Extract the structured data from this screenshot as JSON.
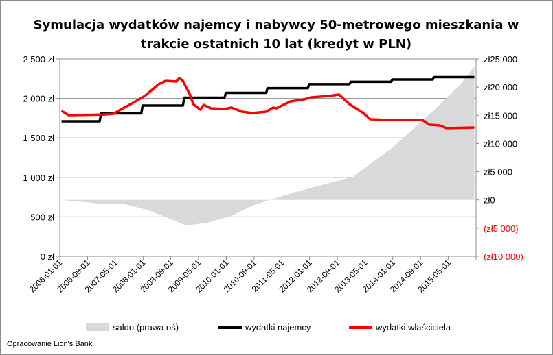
{
  "chart_data": {
    "type": "line",
    "title_line1": "Symulacja wydatków najemcy i nabywcy 50-metrowego mieszkania w",
    "title_line2": "trakcie ostatnich 10 lat (kredyt w PLN)",
    "x_start": "2006-01",
    "x_months": 120,
    "x_tick_labels": [
      "2006-01-01",
      "2006-09-01",
      "2007-05-01",
      "2008-01-01",
      "2008-09-01",
      "2009-05-01",
      "2010-01-01",
      "2010-09-01",
      "2011-05-01",
      "2012-01-01",
      "2012-09-01",
      "2013-05-01",
      "2014-01-01",
      "2014-09-01",
      "2015-05-01"
    ],
    "y_left": {
      "range": [
        0,
        2500
      ],
      "ticks": [
        0,
        500,
        1000,
        1500,
        2000,
        2500
      ],
      "tick_labels": [
        "0 zł",
        "500 zł",
        "1 000 zł",
        "1 500 zł",
        "2 000 zł",
        "2 500 zł"
      ]
    },
    "y_right": {
      "range": [
        -10000,
        25000
      ],
      "ticks": [
        -10000,
        -5000,
        0,
        5000,
        10000,
        15000,
        20000,
        25000
      ],
      "tick_labels": [
        "(zł10 000)",
        "(zł5 000)",
        "zł0",
        "zł5 000",
        "zł10 000",
        "zł15 000",
        "zł20 000",
        "zł25 000"
      ],
      "negative_color": "#ff0000"
    },
    "grid": true,
    "legend_position": "bottom",
    "series": [
      {
        "name": "saldo (prawa oś)",
        "axis": "right",
        "kind": "area",
        "color": "#d9d9d9",
        "points_month_value": [
          [
            0,
            0
          ],
          [
            11,
            -650
          ],
          [
            18,
            -700
          ],
          [
            25,
            -1820
          ],
          [
            30,
            -3040
          ],
          [
            36,
            -4540
          ],
          [
            42,
            -4050
          ],
          [
            49,
            -2830
          ],
          [
            55,
            -1010
          ],
          [
            61,
            200
          ],
          [
            69,
            1660
          ],
          [
            75,
            2640
          ],
          [
            84,
            4100
          ],
          [
            88,
            5920
          ],
          [
            95,
            9080
          ],
          [
            101,
            12360
          ],
          [
            108,
            16250
          ],
          [
            115,
            20500
          ],
          [
            119,
            23660
          ]
        ]
      },
      {
        "name": "wydatki najemcy",
        "axis": "left",
        "kind": "step",
        "color": "#000000",
        "points_month_value": [
          [
            0,
            1710
          ],
          [
            12,
            1810
          ],
          [
            24,
            1910
          ],
          [
            36,
            2010
          ],
          [
            48,
            2070
          ],
          [
            60,
            2130
          ],
          [
            72,
            2180
          ],
          [
            84,
            2210
          ],
          [
            96,
            2240
          ],
          [
            108,
            2270
          ],
          [
            119,
            2270
          ]
        ]
      },
      {
        "name": "wydatki właściciela",
        "axis": "left",
        "kind": "line",
        "color": "#ff0000",
        "points_month_value": [
          [
            0,
            1843
          ],
          [
            2,
            1788
          ],
          [
            5,
            1790
          ],
          [
            12,
            1795
          ],
          [
            15,
            1805
          ],
          [
            17,
            1858
          ],
          [
            21,
            1953
          ],
          [
            24,
            2031
          ],
          [
            28,
            2179
          ],
          [
            30,
            2222
          ],
          [
            33,
            2214
          ],
          [
            34,
            2257
          ],
          [
            35,
            2222
          ],
          [
            37,
            2049
          ],
          [
            38,
            1927
          ],
          [
            40,
            1858
          ],
          [
            41,
            1918
          ],
          [
            43,
            1875
          ],
          [
            47,
            1866
          ],
          [
            49,
            1884
          ],
          [
            52,
            1832
          ],
          [
            55,
            1814
          ],
          [
            59,
            1832
          ],
          [
            61,
            1884
          ],
          [
            62,
            1875
          ],
          [
            66,
            1962
          ],
          [
            70,
            1988
          ],
          [
            72,
            2014
          ],
          [
            77,
            2031
          ],
          [
            80,
            2049
          ],
          [
            83,
            1927
          ],
          [
            87,
            1814
          ],
          [
            89,
            1736
          ],
          [
            94,
            1727
          ],
          [
            104,
            1727
          ],
          [
            106,
            1667
          ],
          [
            109,
            1658
          ],
          [
            111,
            1623
          ],
          [
            119,
            1632
          ]
        ]
      }
    ],
    "footer": "Opracowanie Lion's Bank"
  }
}
